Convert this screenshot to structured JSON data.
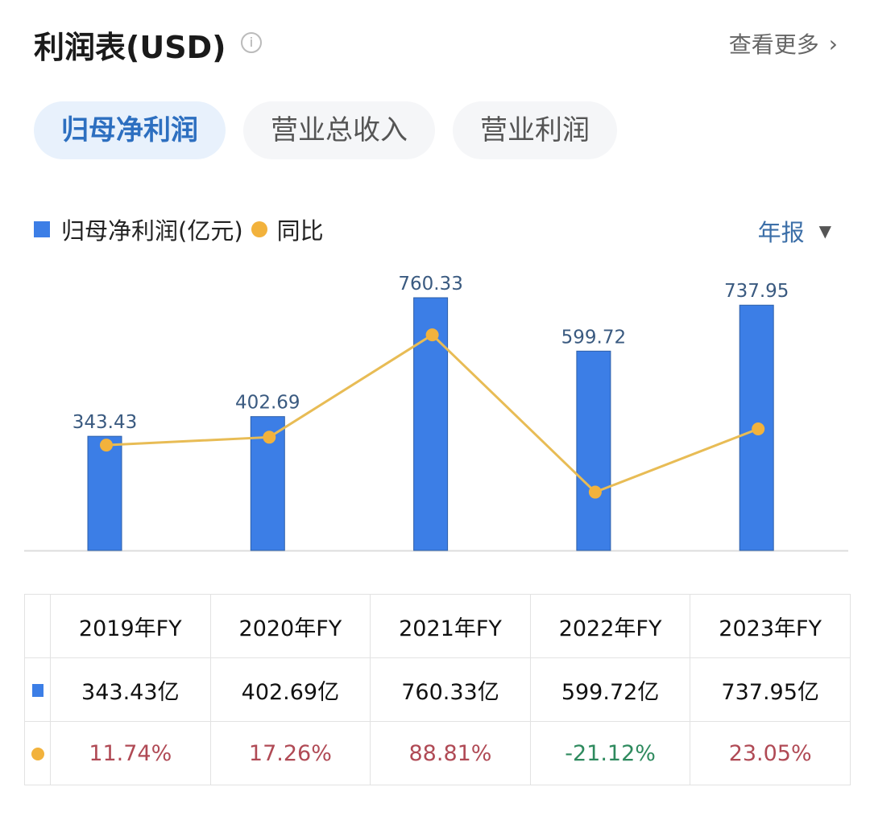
{
  "header": {
    "title": "利润表(USD)",
    "more_label": "查看更多"
  },
  "tabs": [
    {
      "label": "归母净利润",
      "active": true
    },
    {
      "label": "营业总收入",
      "active": false
    },
    {
      "label": "营业利润",
      "active": false
    }
  ],
  "period_select": "年报",
  "chart_data": {
    "type": "bar+line",
    "categories": [
      "2019年FY",
      "2020年FY",
      "2021年FY",
      "2022年FY",
      "2023年FY"
    ],
    "series": [
      {
        "name": "归母净利润(亿元)",
        "type": "bar",
        "color": "#3c7ee6",
        "values": [
          343.43,
          402.69,
          760.33,
          599.72,
          737.95
        ],
        "labels": [
          "343.43",
          "402.69",
          "760.33",
          "599.72",
          "737.95"
        ]
      },
      {
        "name": "同比",
        "type": "line",
        "color": "#f2b23c",
        "values": [
          11.74,
          17.26,
          88.81,
          -21.12,
          23.05
        ]
      }
    ],
    "grid": false,
    "legend": "top-left"
  },
  "table": {
    "headers": [
      "2019年FY",
      "2020年FY",
      "2021年FY",
      "2022年FY",
      "2023年FY"
    ],
    "values": [
      "343.43亿",
      "402.69亿",
      "760.33亿",
      "599.72亿",
      "737.95亿"
    ],
    "yoy": [
      "11.74%",
      "17.26%",
      "88.81%",
      "-21.12%",
      "23.05%"
    ]
  },
  "colors": {
    "positive": "#b04a55",
    "negative": "#2e8a5e",
    "accent": "#2d6fc0"
  }
}
